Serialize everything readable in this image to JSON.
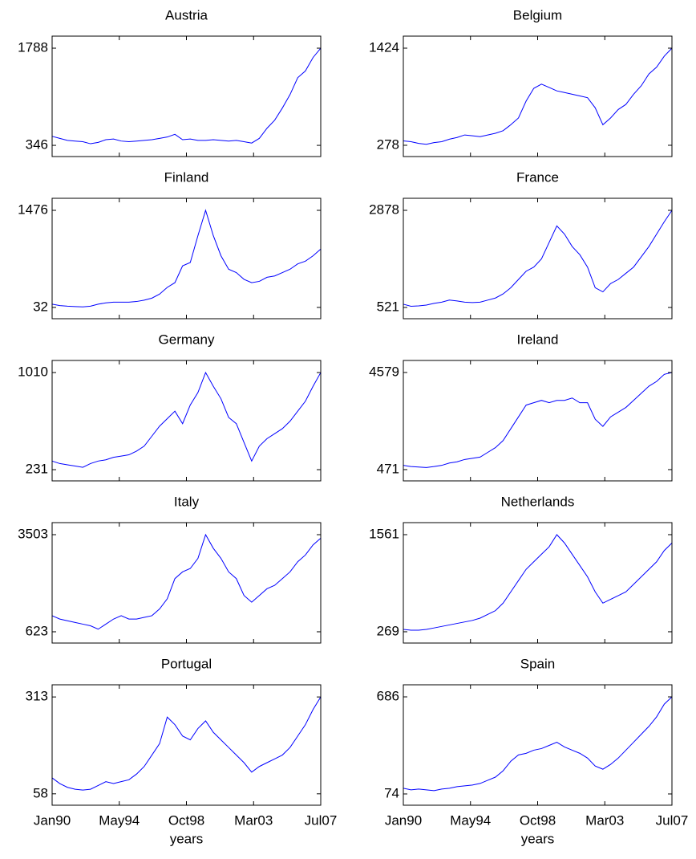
{
  "chart_data": [
    {
      "type": "line",
      "title": "Austria",
      "color": "#0000ff",
      "xlim": [
        1990,
        2007.5
      ],
      "xticks": [
        1990,
        1994.375,
        1998.75,
        2003.125,
        2007.5
      ],
      "ylim": [
        180,
        1967
      ],
      "yticks": [
        346,
        1788
      ],
      "x": [
        1990,
        1990.5,
        1991,
        1991.5,
        1992,
        1992.5,
        1993,
        1993.5,
        1994,
        1994.5,
        1995,
        1995.5,
        1996,
        1996.5,
        1997,
        1997.5,
        1998,
        1998.5,
        1999,
        1999.5,
        2000,
        2000.5,
        2001,
        2001.5,
        2002,
        2002.5,
        2003,
        2003.5,
        2004,
        2004.5,
        2005,
        2005.5,
        2006,
        2006.5,
        2007,
        2007.5
      ],
      "values": [
        480,
        450,
        420,
        410,
        400,
        370,
        390,
        430,
        440,
        410,
        400,
        410,
        420,
        430,
        450,
        470,
        510,
        430,
        440,
        420,
        420,
        430,
        420,
        410,
        420,
        400,
        380,
        450,
        600,
        720,
        900,
        1100,
        1350,
        1450,
        1650,
        1788
      ]
    },
    {
      "type": "line",
      "title": "Belgium",
      "color": "#0000ff",
      "xlim": [
        1990,
        2007.5
      ],
      "xticks": [
        1990,
        1994.375,
        1998.75,
        2003.125,
        2007.5
      ],
      "ylim": [
        145,
        1566
      ],
      "yticks": [
        278,
        1424
      ],
      "x": [
        1990,
        1990.5,
        1991,
        1991.5,
        1992,
        1992.5,
        1993,
        1993.5,
        1994,
        1994.5,
        1995,
        1995.5,
        1996,
        1996.5,
        1997,
        1997.5,
        1998,
        1998.5,
        1999,
        1999.5,
        2000,
        2000.5,
        2001,
        2001.5,
        2002,
        2002.5,
        2003,
        2003.5,
        2004,
        2004.5,
        2005,
        2005.5,
        2006,
        2006.5,
        2007,
        2007.5
      ],
      "values": [
        330,
        320,
        300,
        290,
        310,
        320,
        350,
        370,
        400,
        390,
        380,
        400,
        420,
        450,
        520,
        600,
        800,
        950,
        1000,
        960,
        920,
        900,
        880,
        860,
        840,
        720,
        520,
        600,
        700,
        760,
        880,
        980,
        1120,
        1200,
        1330,
        1424
      ]
    },
    {
      "type": "line",
      "title": "Finland",
      "color": "#0000ff",
      "xlim": [
        1990,
        2007.5
      ],
      "xticks": [
        1990,
        1994.375,
        1998.75,
        2003.125,
        2007.5
      ],
      "ylim": [
        -136,
        1655
      ],
      "yticks": [
        32,
        1476
      ],
      "x": [
        1990,
        1990.5,
        1991,
        1991.5,
        1992,
        1992.5,
        1993,
        1993.5,
        1994,
        1994.5,
        1995,
        1995.5,
        1996,
        1996.5,
        1997,
        1997.5,
        1998,
        1998.5,
        1999,
        1999.5,
        2000,
        2000.5,
        2001,
        2001.5,
        2002,
        2002.5,
        2003,
        2003.5,
        2004,
        2004.5,
        2005,
        2005.5,
        2006,
        2006.5,
        2007,
        2007.5
      ],
      "values": [
        80,
        60,
        50,
        45,
        40,
        50,
        80,
        100,
        110,
        110,
        110,
        120,
        140,
        170,
        230,
        330,
        400,
        650,
        700,
        1100,
        1476,
        1100,
        800,
        600,
        550,
        450,
        400,
        420,
        480,
        500,
        550,
        600,
        680,
        720,
        800,
        900
      ]
    },
    {
      "type": "line",
      "title": "France",
      "color": "#0000ff",
      "xlim": [
        1990,
        2007.5
      ],
      "xticks": [
        1990,
        1994.375,
        1998.75,
        2003.125,
        2007.5
      ],
      "ylim": [
        248,
        3170
      ],
      "yticks": [
        521,
        2878
      ],
      "x": [
        1990,
        1990.5,
        1991,
        1991.5,
        1992,
        1992.5,
        1993,
        1993.5,
        1994,
        1994.5,
        1995,
        1995.5,
        1996,
        1996.5,
        1997,
        1997.5,
        1998,
        1998.5,
        1999,
        1999.5,
        2000,
        2000.5,
        2001,
        2001.5,
        2002,
        2002.5,
        2003,
        2003.5,
        2004,
        2004.5,
        2005,
        2005.5,
        2006,
        2006.5,
        2007,
        2007.5
      ],
      "values": [
        600,
        550,
        560,
        580,
        620,
        650,
        700,
        680,
        650,
        640,
        650,
        700,
        750,
        850,
        1000,
        1200,
        1400,
        1500,
        1700,
        2100,
        2500,
        2300,
        2000,
        1800,
        1500,
        1000,
        900,
        1100,
        1200,
        1350,
        1500,
        1750,
        2000,
        2300,
        2600,
        2878
      ]
    },
    {
      "type": "line",
      "title": "Germany",
      "color": "#0000ff",
      "xlim": [
        1990,
        2007.5
      ],
      "xticks": [
        1990,
        1994.375,
        1998.75,
        2003.125,
        2007.5
      ],
      "ylim": [
        141,
        1107
      ],
      "yticks": [
        231,
        1010
      ],
      "x": [
        1990,
        1990.5,
        1991,
        1991.5,
        1992,
        1992.5,
        1993,
        1993.5,
        1994,
        1994.5,
        1995,
        1995.5,
        1996,
        1996.5,
        1997,
        1997.5,
        1998,
        1998.5,
        1999,
        1999.5,
        2000,
        2000.5,
        2001,
        2001.5,
        2002,
        2002.5,
        2003,
        2003.5,
        2004,
        2004.5,
        2005,
        2005.5,
        2006,
        2006.5,
        2007,
        2007.5
      ],
      "values": [
        300,
        280,
        270,
        260,
        250,
        280,
        300,
        310,
        330,
        340,
        350,
        380,
        420,
        500,
        580,
        640,
        700,
        600,
        750,
        850,
        1010,
        900,
        800,
        650,
        600,
        450,
        300,
        420,
        480,
        520,
        560,
        620,
        700,
        780,
        900,
        1010
      ]
    },
    {
      "type": "line",
      "title": "Ireland",
      "color": "#0000ff",
      "xlim": [
        1990,
        2007.5
      ],
      "xticks": [
        1990,
        1994.375,
        1998.75,
        2003.125,
        2007.5
      ],
      "ylim": [
        -6,
        5088
      ],
      "yticks": [
        471,
        4579
      ],
      "x": [
        1990,
        1990.5,
        1991,
        1991.5,
        1992,
        1992.5,
        1993,
        1993.5,
        1994,
        1994.5,
        1995,
        1995.5,
        1996,
        1996.5,
        1997,
        1997.5,
        1998,
        1998.5,
        1999,
        1999.5,
        2000,
        2000.5,
        2001,
        2001.5,
        2002,
        2002.5,
        2003,
        2003.5,
        2004,
        2004.5,
        2005,
        2005.5,
        2006,
        2006.5,
        2007,
        2007.5
      ],
      "values": [
        650,
        600,
        580,
        560,
        600,
        650,
        750,
        800,
        900,
        950,
        1000,
        1200,
        1400,
        1700,
        2200,
        2700,
        3200,
        3300,
        3400,
        3300,
        3400,
        3400,
        3500,
        3300,
        3300,
        2600,
        2300,
        2700,
        2900,
        3100,
        3400,
        3700,
        4000,
        4200,
        4500,
        4579
      ]
    },
    {
      "type": "line",
      "title": "Italy",
      "color": "#0000ff",
      "xlim": [
        1990,
        2007.5
      ],
      "xticks": [
        1990,
        1994.375,
        1998.75,
        2003.125,
        2007.5
      ],
      "ylim": [
        289,
        3860
      ],
      "yticks": [
        623,
        3503
      ],
      "x": [
        1990,
        1990.5,
        1991,
        1991.5,
        1992,
        1992.5,
        1993,
        1993.5,
        1994,
        1994.5,
        1995,
        1995.5,
        1996,
        1996.5,
        1997,
        1997.5,
        1998,
        1998.5,
        1999,
        1999.5,
        2000,
        2000.5,
        2001,
        2001.5,
        2002,
        2002.5,
        2003,
        2003.5,
        2004,
        2004.5,
        2005,
        2005.5,
        2006,
        2006.5,
        2007,
        2007.5
      ],
      "values": [
        1100,
        1000,
        950,
        900,
        850,
        800,
        700,
        850,
        1000,
        1100,
        1000,
        1000,
        1050,
        1100,
        1300,
        1600,
        2200,
        2400,
        2500,
        2800,
        3503,
        3100,
        2800,
        2400,
        2200,
        1700,
        1500,
        1700,
        1900,
        2000,
        2200,
        2400,
        2700,
        2900,
        3200,
        3400
      ]
    },
    {
      "type": "line",
      "title": "Netherlands",
      "color": "#0000ff",
      "xlim": [
        1990,
        2007.5
      ],
      "xticks": [
        1990,
        1994.375,
        1998.75,
        2003.125,
        2007.5
      ],
      "ylim": [
        119,
        1721
      ],
      "yticks": [
        269,
        1561
      ],
      "x": [
        1990,
        1990.5,
        1991,
        1991.5,
        1992,
        1992.5,
        1993,
        1993.5,
        1994,
        1994.5,
        1995,
        1995.5,
        1996,
        1996.5,
        1997,
        1997.5,
        1998,
        1998.5,
        1999,
        1999.5,
        2000,
        2000.5,
        2001,
        2001.5,
        2002,
        2002.5,
        2003,
        2003.5,
        2004,
        2004.5,
        2005,
        2005.5,
        2006,
        2006.5,
        2007,
        2007.5
      ],
      "values": [
        300,
        290,
        290,
        300,
        320,
        340,
        360,
        380,
        400,
        420,
        450,
        500,
        550,
        650,
        800,
        950,
        1100,
        1200,
        1300,
        1400,
        1561,
        1450,
        1300,
        1150,
        1000,
        800,
        650,
        700,
        750,
        800,
        900,
        1000,
        1100,
        1200,
        1350,
        1450
      ]
    },
    {
      "type": "line",
      "title": "Portugal",
      "color": "#0000ff",
      "xlabel": "years",
      "xlim": [
        1990,
        2007.5
      ],
      "xticks": [
        {
          "value": 1990,
          "label": "Jan90"
        },
        {
          "value": 1994.375,
          "label": "May94"
        },
        {
          "value": 1998.75,
          "label": "Oct98"
        },
        {
          "value": 2003.125,
          "label": "Mar03"
        },
        {
          "value": 2007.5,
          "label": "Jul07"
        }
      ],
      "ylim": [
        28,
        345
      ],
      "yticks": [
        58,
        313
      ],
      "x": [
        1990,
        1990.5,
        1991,
        1991.5,
        1992,
        1992.5,
        1993,
        1993.5,
        1994,
        1994.5,
        1995,
        1995.5,
        1996,
        1996.5,
        1997,
        1997.5,
        1998,
        1998.5,
        1999,
        1999.5,
        2000,
        2000.5,
        2001,
        2001.5,
        2002,
        2002.5,
        2003,
        2003.5,
        2004,
        2004.5,
        2005,
        2005.5,
        2006,
        2006.5,
        2007,
        2007.5
      ],
      "values": [
        100,
        85,
        75,
        70,
        68,
        70,
        80,
        90,
        85,
        90,
        95,
        110,
        130,
        160,
        190,
        260,
        240,
        210,
        200,
        230,
        250,
        220,
        200,
        180,
        160,
        140,
        115,
        130,
        140,
        150,
        160,
        180,
        210,
        240,
        280,
        313
      ]
    },
    {
      "type": "line",
      "title": "Spain",
      "color": "#0000ff",
      "xlabel": "years",
      "xlim": [
        1990,
        2007.5
      ],
      "xticks": [
        {
          "value": 1990,
          "label": "Jan90"
        },
        {
          "value": 1994.375,
          "label": "May94"
        },
        {
          "value": 1998.75,
          "label": "Oct98"
        },
        {
          "value": 2003.125,
          "label": "Mar03"
        },
        {
          "value": 2007.5,
          "label": "Jul07"
        }
      ],
      "ylim": [
        3,
        762
      ],
      "yticks": [
        74,
        686
      ],
      "x": [
        1990,
        1990.5,
        1991,
        1991.5,
        1992,
        1992.5,
        1993,
        1993.5,
        1994,
        1994.5,
        1995,
        1995.5,
        1996,
        1996.5,
        1997,
        1997.5,
        1998,
        1998.5,
        1999,
        1999.5,
        2000,
        2000.5,
        2001,
        2001.5,
        2002,
        2002.5,
        2003,
        2003.5,
        2004,
        2004.5,
        2005,
        2005.5,
        2006,
        2006.5,
        2007,
        2007.5
      ],
      "values": [
        110,
        100,
        105,
        100,
        95,
        105,
        110,
        120,
        125,
        130,
        140,
        160,
        180,
        220,
        280,
        320,
        330,
        350,
        360,
        380,
        400,
        370,
        350,
        330,
        300,
        250,
        230,
        260,
        300,
        350,
        400,
        450,
        500,
        560,
        640,
        686
      ]
    }
  ]
}
